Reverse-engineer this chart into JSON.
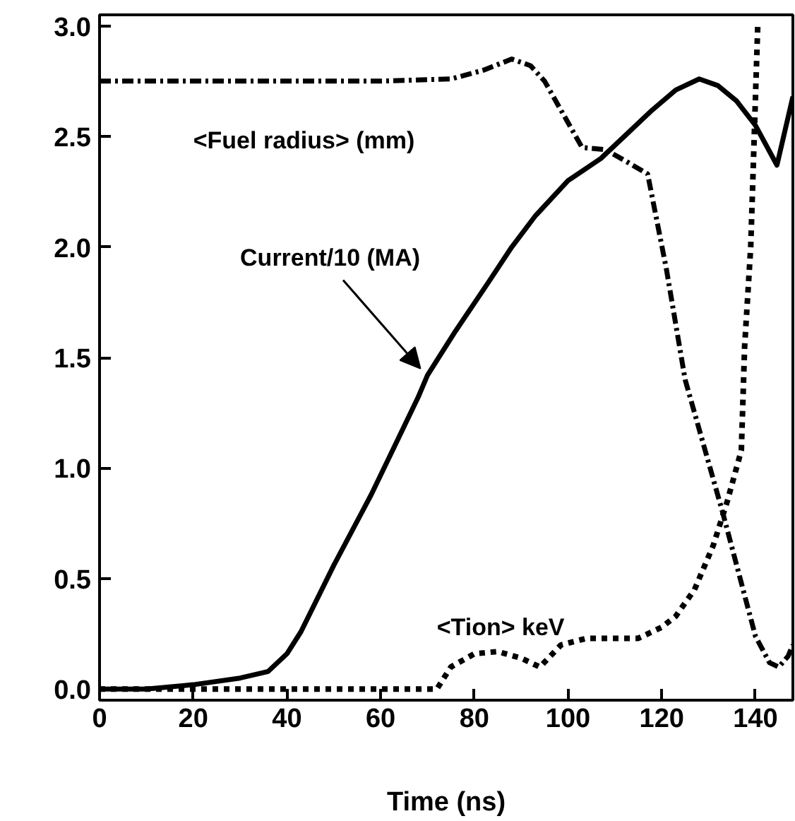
{
  "chart_data": {
    "type": "line",
    "xlabel": "Time (ns)",
    "xlim": [
      0,
      148
    ],
    "ylim": [
      -0.05,
      3.05
    ],
    "xticks": [
      0,
      20,
      40,
      60,
      80,
      100,
      120,
      140
    ],
    "yticks": [
      {
        "value": 0,
        "label": "0.0"
      },
      {
        "value": 0.5,
        "label": "0.5"
      },
      {
        "value": 1,
        "label": "1.0"
      },
      {
        "value": 1.5,
        "label": "1.5"
      },
      {
        "value": 2,
        "label": "2.0"
      },
      {
        "value": 2.5,
        "label": "2.5"
      },
      {
        "value": 3,
        "label": "3.0"
      }
    ],
    "grid": false,
    "series": [
      {
        "name": "Current/10 (MA)",
        "color": "#000000",
        "line_style": "solid",
        "x": [
          0,
          10,
          20,
          30,
          36,
          40,
          43,
          50,
          58,
          63,
          68,
          70,
          76,
          83,
          88,
          93,
          100,
          107,
          112,
          118,
          123,
          128,
          132,
          136,
          140,
          144.6,
          148
        ],
        "values": [
          0,
          0,
          0.02,
          0.05,
          0.08,
          0.16,
          0.26,
          0.56,
          0.88,
          1.1,
          1.32,
          1.42,
          1.62,
          1.84,
          2.0,
          2.14,
          2.3,
          2.4,
          2.5,
          2.62,
          2.71,
          2.76,
          2.73,
          2.66,
          2.55,
          2.37,
          2.68
        ]
      },
      {
        "name": "<Fuel radius> (mm)",
        "color": "#000000",
        "line_style": "dashdot",
        "x": [
          0,
          20,
          40,
          60,
          75,
          82,
          88,
          92,
          95,
          99,
          103,
          108,
          113,
          117,
          121,
          125,
          129,
          133,
          137,
          140,
          143,
          145,
          147,
          148
        ],
        "values": [
          2.75,
          2.75,
          2.75,
          2.75,
          2.76,
          2.8,
          2.85,
          2.82,
          2.75,
          2.6,
          2.45,
          2.44,
          2.38,
          2.33,
          1.9,
          1.4,
          1.1,
          0.8,
          0.48,
          0.24,
          0.12,
          0.1,
          0.15,
          0.2
        ]
      },
      {
        "name": "<Tion> keV",
        "color": "#000000",
        "line_style": "dotted",
        "x": [
          0,
          20,
          40,
          60,
          72,
          75,
          80,
          85,
          90,
          94,
          98.5,
          104,
          110,
          115,
          120,
          123,
          127,
          131,
          134,
          137,
          137.7,
          139,
          140.5
        ],
        "values": [
          0,
          0,
          0,
          0,
          0,
          0.1,
          0.16,
          0.17,
          0.14,
          0.1,
          0.2,
          0.23,
          0.23,
          0.23,
          0.28,
          0.33,
          0.45,
          0.65,
          0.85,
          1.08,
          1.55,
          2.0,
          3.0
        ]
      }
    ]
  }
}
